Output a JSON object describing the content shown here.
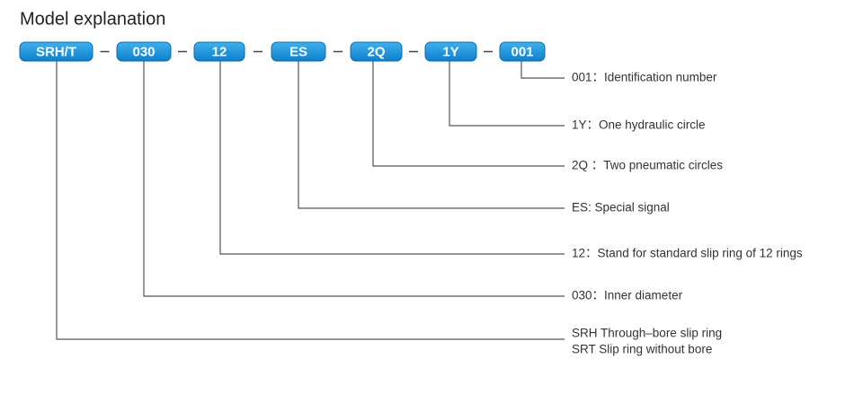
{
  "header": {
    "title": "Model explanation"
  },
  "nodes": [
    {
      "code": "SRH/T",
      "description": [
        "SRH Through–bore slip ring",
        "SRT Slip ring without bore"
      ]
    },
    {
      "code": "030",
      "description": [
        "030：Inner diameter"
      ]
    },
    {
      "code": "12",
      "description": [
        "12：Stand for standard slip ring of 12 rings"
      ]
    },
    {
      "code": "ES",
      "description": [
        "ES: Special signal"
      ]
    },
    {
      "code": "2Q",
      "description": [
        "2Q ：Two  pneumatic circles"
      ]
    },
    {
      "code": "1Y",
      "description": [
        "1Y：One  hydraulic circle"
      ]
    },
    {
      "code": "001",
      "description": [
        "001：Identification number"
      ]
    }
  ]
}
